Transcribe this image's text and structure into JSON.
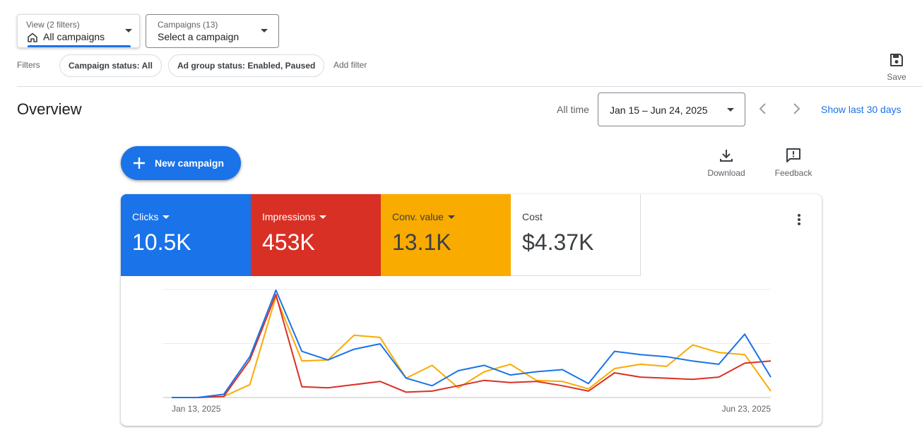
{
  "filters_bar": {
    "view": {
      "small_label": "View (2 filters)",
      "value": "All campaigns"
    },
    "campaigns": {
      "small_label": "Campaigns (13)",
      "value": "Select a campaign"
    },
    "filters_label": "Filters",
    "chips": [
      "Campaign status: All",
      "Ad group status: Enabled, Paused"
    ],
    "add_filter": "Add filter",
    "save_label": "Save"
  },
  "overview": {
    "title": "Overview",
    "all_time": "All time",
    "date_range": "Jan 15 – Jun 24, 2025",
    "show_last": "Show last 30 days"
  },
  "actions": {
    "new_campaign": "New campaign",
    "download": "Download",
    "feedback": "Feedback"
  },
  "metrics": [
    {
      "label": "Clicks",
      "value": "10.5K",
      "color": "#1a73e8"
    },
    {
      "label": "Impressions",
      "value": "453K",
      "color": "#d93025"
    },
    {
      "label": "Conv. value",
      "value": "13.1K",
      "color": "#f9ab00"
    },
    {
      "label": "Cost",
      "value": "$4.37K",
      "color": "#ffffff"
    }
  ],
  "chart_data": {
    "type": "line",
    "x_tick_labels": [
      "Jan 13, 2025",
      "Jun 23, 2025"
    ],
    "points": 24,
    "ylim": [
      0,
      100
    ],
    "grid": true,
    "series": [
      {
        "name": "Clicks",
        "color": "#1a73e8",
        "values": [
          0,
          0,
          3,
          38,
          100,
          43,
          35,
          45,
          50,
          18,
          11,
          25,
          30,
          21,
          24,
          26,
          13,
          43,
          40,
          38,
          34,
          31,
          59,
          19
        ]
      },
      {
        "name": "Impressions",
        "color": "#d93025",
        "values": [
          0,
          0,
          1,
          35,
          96,
          10,
          9,
          12,
          15,
          5,
          6,
          11,
          16,
          14,
          15,
          11,
          6,
          23,
          19,
          18,
          17,
          19,
          32,
          34
        ]
      },
      {
        "name": "Conv. value",
        "color": "#f9ab00",
        "values": [
          0,
          0,
          1,
          12,
          94,
          34,
          35,
          58,
          56,
          18,
          30,
          9,
          24,
          31,
          16,
          15,
          8,
          27,
          31,
          29,
          49,
          42,
          40,
          6
        ]
      }
    ]
  }
}
